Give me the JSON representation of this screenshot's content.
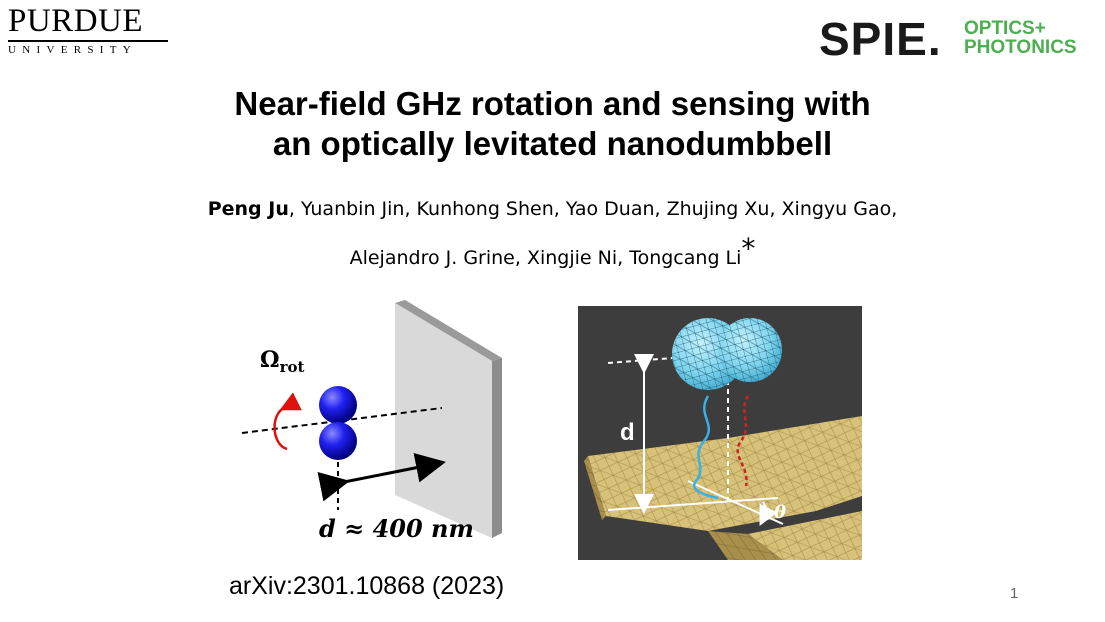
{
  "logos": {
    "purdue": {
      "name": "PURDUE",
      "sub": "UNIVERSITY"
    },
    "spie": {
      "word": "SPIE.",
      "line1": "OPTICS+",
      "line2": "PHOTONICS",
      "accent": "#4caf50"
    }
  },
  "title": {
    "line1": "Near-field GHz rotation and sensing with",
    "line2": "an optically levitated nanodumbbell"
  },
  "authors": {
    "lead": "Peng Ju",
    "line1_rest": ", Yuanbin Jin, Kunhong Shen, Yao Duan, Zhujing Xu, Xingyu Gao,",
    "line2": "Alejandro J. Grine, Xingjie Ni, Tongcang Li",
    "corresponding_mark": "*"
  },
  "figure_left": {
    "omega_symbol": "Ω",
    "omega_subscript": "rot",
    "distance_label": "d ≈ 400 nm",
    "sphere_color": "#1010e0",
    "rotation_arrow_color": "#e01010"
  },
  "figure_right": {
    "distance_label": "d",
    "angle_label": "θ",
    "background_color": "#3d3d3d",
    "beam_color": "#d8c27a",
    "sphere_color": "#7fd4ee",
    "trace_blue": "#39b0e6",
    "trace_red": "#cc2222"
  },
  "citation": "arXiv:2301.10868 (2023)",
  "slide_number": "1"
}
